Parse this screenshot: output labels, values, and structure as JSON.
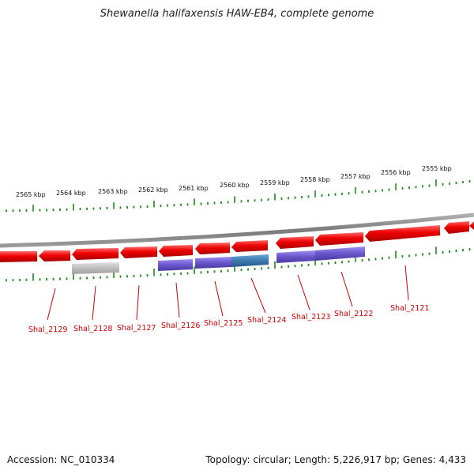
{
  "title": "Shewanella halifaxensis HAW-EB4, complete genome",
  "kbp_labels": [
    "2565 kbp",
    "2564 kbp",
    "2563 kbp",
    "2562 kbp",
    "2561 kbp",
    "2560 kbp",
    "2559 kbp",
    "2558 kbp",
    "2557 kbp",
    "2556 kbp",
    "2555 kbp"
  ],
  "gene_labels": [
    "Shal_2129",
    "Shal_2128",
    "Shal_2127",
    "Shal_2126",
    "Shal_2125",
    "Shal_2124",
    "Shal_2123",
    "Shal_2122",
    "Shal_2121"
  ],
  "footer": {
    "accession": "Accession: NC_010334",
    "summary": "Topology: circular; Length: 5,226,917 bp; Genes: 4,433"
  },
  "colors": {
    "forward_gene": "#ee0000",
    "reverse_gene": "#6a55cc",
    "teal_gene": "#3c7ab0",
    "gray_gene": "#bdbdbd",
    "tick": "#1a8a1a",
    "backbone": "#808080",
    "label": "#cc0000"
  }
}
